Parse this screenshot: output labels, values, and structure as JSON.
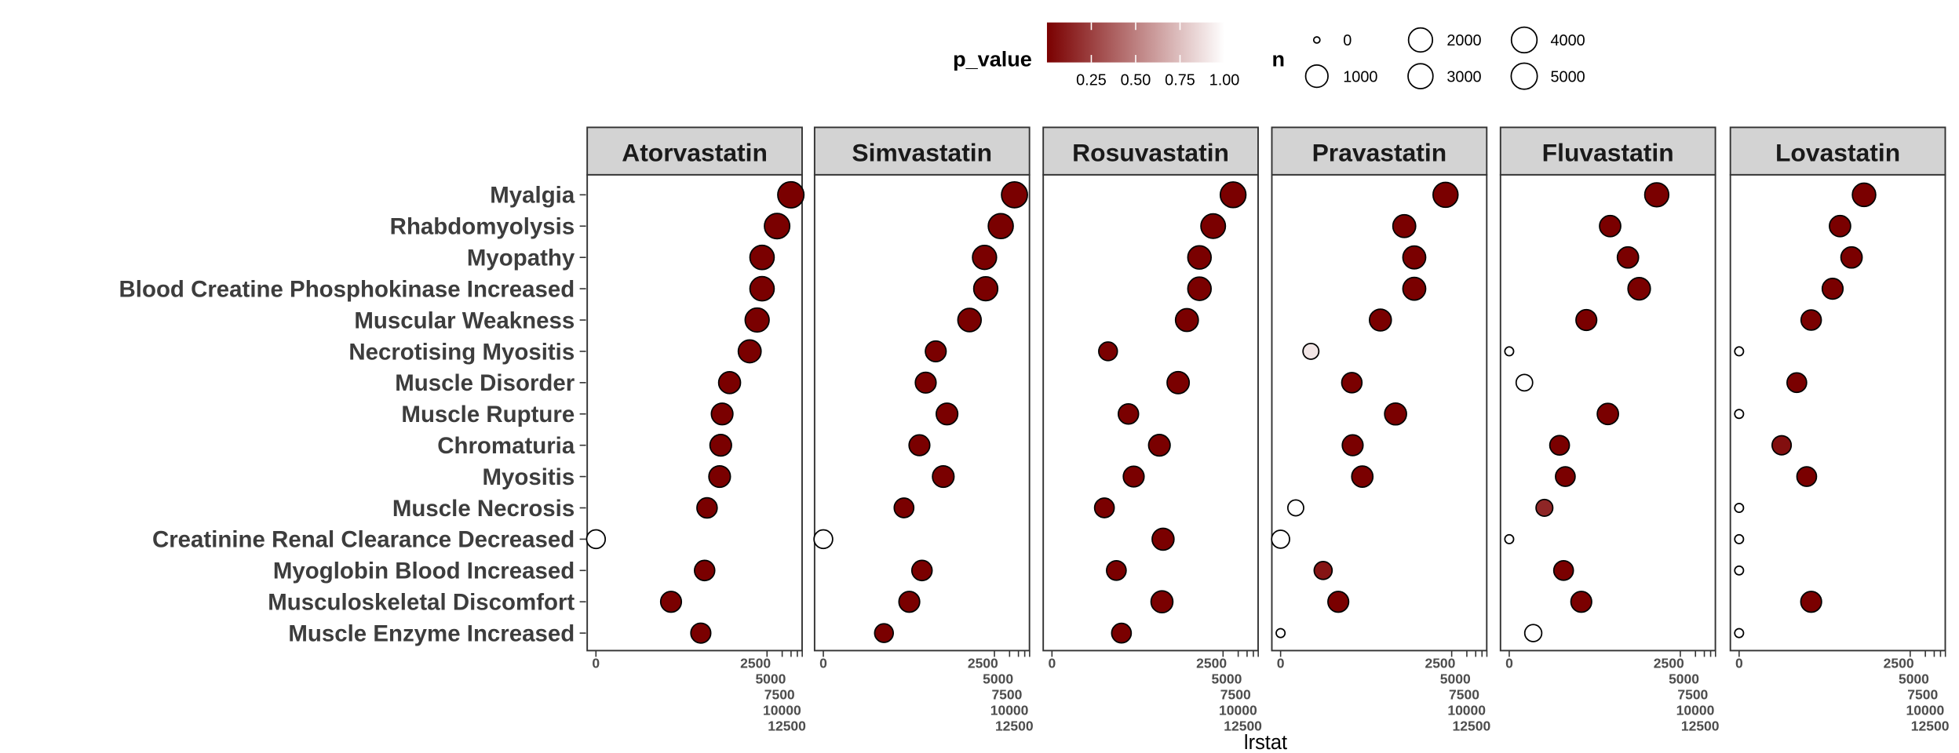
{
  "chart_data": {
    "type": "scatter",
    "title": "",
    "xlabel": "lrstat",
    "ylabel": "",
    "x_scale": "log10(1+x)",
    "x_ticks": [
      0,
      2500,
      5000,
      7500,
      10000,
      12500
    ],
    "x_tick_labels": [
      "0",
      "2500",
      "5000",
      "7500",
      "10000",
      "12500"
    ],
    "xlim": [
      0,
      12500
    ],
    "grid": false,
    "legend_position": "top",
    "facets": [
      "Atorvastatin",
      "Simvastatin",
      "Rosuvastatin",
      "Pravastatin",
      "Fluvastatin",
      "Lovastatin"
    ],
    "categories": [
      "Myalgia",
      "Rhabdomyolysis",
      "Myopathy",
      "Blood Creatine Phosphokinase Increased",
      "Muscular Weakness",
      "Necrotising Myositis",
      "Muscle Disorder",
      "Muscle Rupture",
      "Chromaturia",
      "Myositis",
      "Muscle Necrosis",
      "Creatinine Renal Clearance Decreased",
      "Myoglobin Blood Increased",
      "Musculoskeletal Discomfort",
      "Muscle Enzyme Increased"
    ],
    "series": [
      {
        "name": "Atorvastatin",
        "lrstat": [
          7430,
          3960,
          1990,
          1990,
          1590,
          1130,
          450,
          320,
          300,
          285,
          160,
          0,
          143,
          30,
          120
        ],
        "p_value": [
          0,
          0,
          0,
          0,
          0,
          0,
          0,
          0,
          0,
          0,
          0,
          1,
          0,
          0,
          0
        ],
        "n": [
          5000,
          3500,
          2200,
          2200,
          2000,
          1200,
          800,
          700,
          700,
          700,
          400,
          200,
          400,
          500,
          350
        ]
      },
      {
        "name": "Simvastatin",
        "lrstat": [
          6260,
          3340,
          1590,
          1680,
          800,
          170,
          107,
          285,
          80,
          240,
          39,
          0,
          90,
          50,
          15
        ],
        "p_value": [
          0,
          0,
          0,
          0,
          0,
          0,
          0,
          0,
          0,
          0,
          0,
          1,
          0,
          0,
          0
        ],
        "n": [
          4500,
          3000,
          2000,
          2000,
          1500,
          500,
          500,
          700,
          500,
          700,
          300,
          200,
          400,
          500,
          200
        ]
      },
      {
        "name": "Rosuvastatin",
        "lrstat": [
          3960,
          1590,
          850,
          850,
          478,
          12,
          320,
          32,
          135,
          41,
          10,
          160,
          18,
          152,
          23
        ],
        "p_value": [
          0,
          0,
          0,
          0,
          0,
          0,
          0,
          0,
          0,
          0,
          0,
          0,
          0,
          0,
          0
        ],
        "n": [
          4000,
          2500,
          1500,
          1500,
          1200,
          200,
          900,
          400,
          700,
          500,
          300,
          800,
          300,
          800,
          300
        ]
      },
      {
        "name": "Pravastatin",
        "lrstat": [
          1885,
          285,
          451,
          451,
          95,
          3,
          25,
          191,
          26,
          41,
          1,
          0,
          6,
          13,
          0
        ],
        "p_value": [
          0,
          0,
          0,
          0,
          0,
          0.9,
          0,
          0,
          0,
          0,
          1,
          1,
          0.08,
          0,
          1
        ],
        "n": [
          3000,
          1200,
          1200,
          1200,
          800,
          60,
          400,
          800,
          500,
          600,
          60,
          150,
          150,
          500,
          2
        ]
      },
      {
        "name": "Fluvastatin",
        "lrstat": [
          850,
          100,
          227,
          380,
          33,
          0,
          1,
          90,
          9,
          12,
          4,
          0,
          11,
          26,
          2
        ],
        "p_value": [
          0,
          0,
          0,
          0,
          0,
          1,
          1,
          0,
          0,
          0,
          0.15,
          1,
          0,
          0,
          1
        ],
        "n": [
          2000,
          600,
          600,
          1000,
          500,
          2,
          80,
          600,
          300,
          300,
          90,
          2,
          300,
          500,
          100
        ]
      },
      {
        "name": "Lovastatin",
        "lrstat": [
          302,
          100,
          170,
          71,
          26,
          0,
          13,
          0,
          6,
          21,
          0,
          0,
          0,
          26,
          0
        ],
        "p_value": [
          0,
          0,
          0,
          0,
          0,
          1,
          0,
          1,
          0.06,
          0,
          1,
          1,
          1,
          0,
          1
        ],
        "n": [
          1500,
          600,
          600,
          500,
          400,
          2,
          300,
          2,
          250,
          300,
          2,
          2,
          2,
          500,
          2
        ]
      }
    ],
    "legend": {
      "fill": {
        "title": "p_value",
        "ticks": [
          0.25,
          0.5,
          0.75,
          1.0
        ],
        "tick_labels": [
          "0.25",
          "0.50",
          "0.75",
          "1.00"
        ],
        "low_color": "#7a0000",
        "high_color": "#ffffff"
      },
      "size": {
        "title": "n",
        "breaks": [
          0,
          1000,
          2000,
          3000,
          4000,
          5000
        ],
        "labels": [
          "0",
          "1000",
          "2000",
          "3000",
          "4000",
          "5000"
        ]
      }
    }
  }
}
